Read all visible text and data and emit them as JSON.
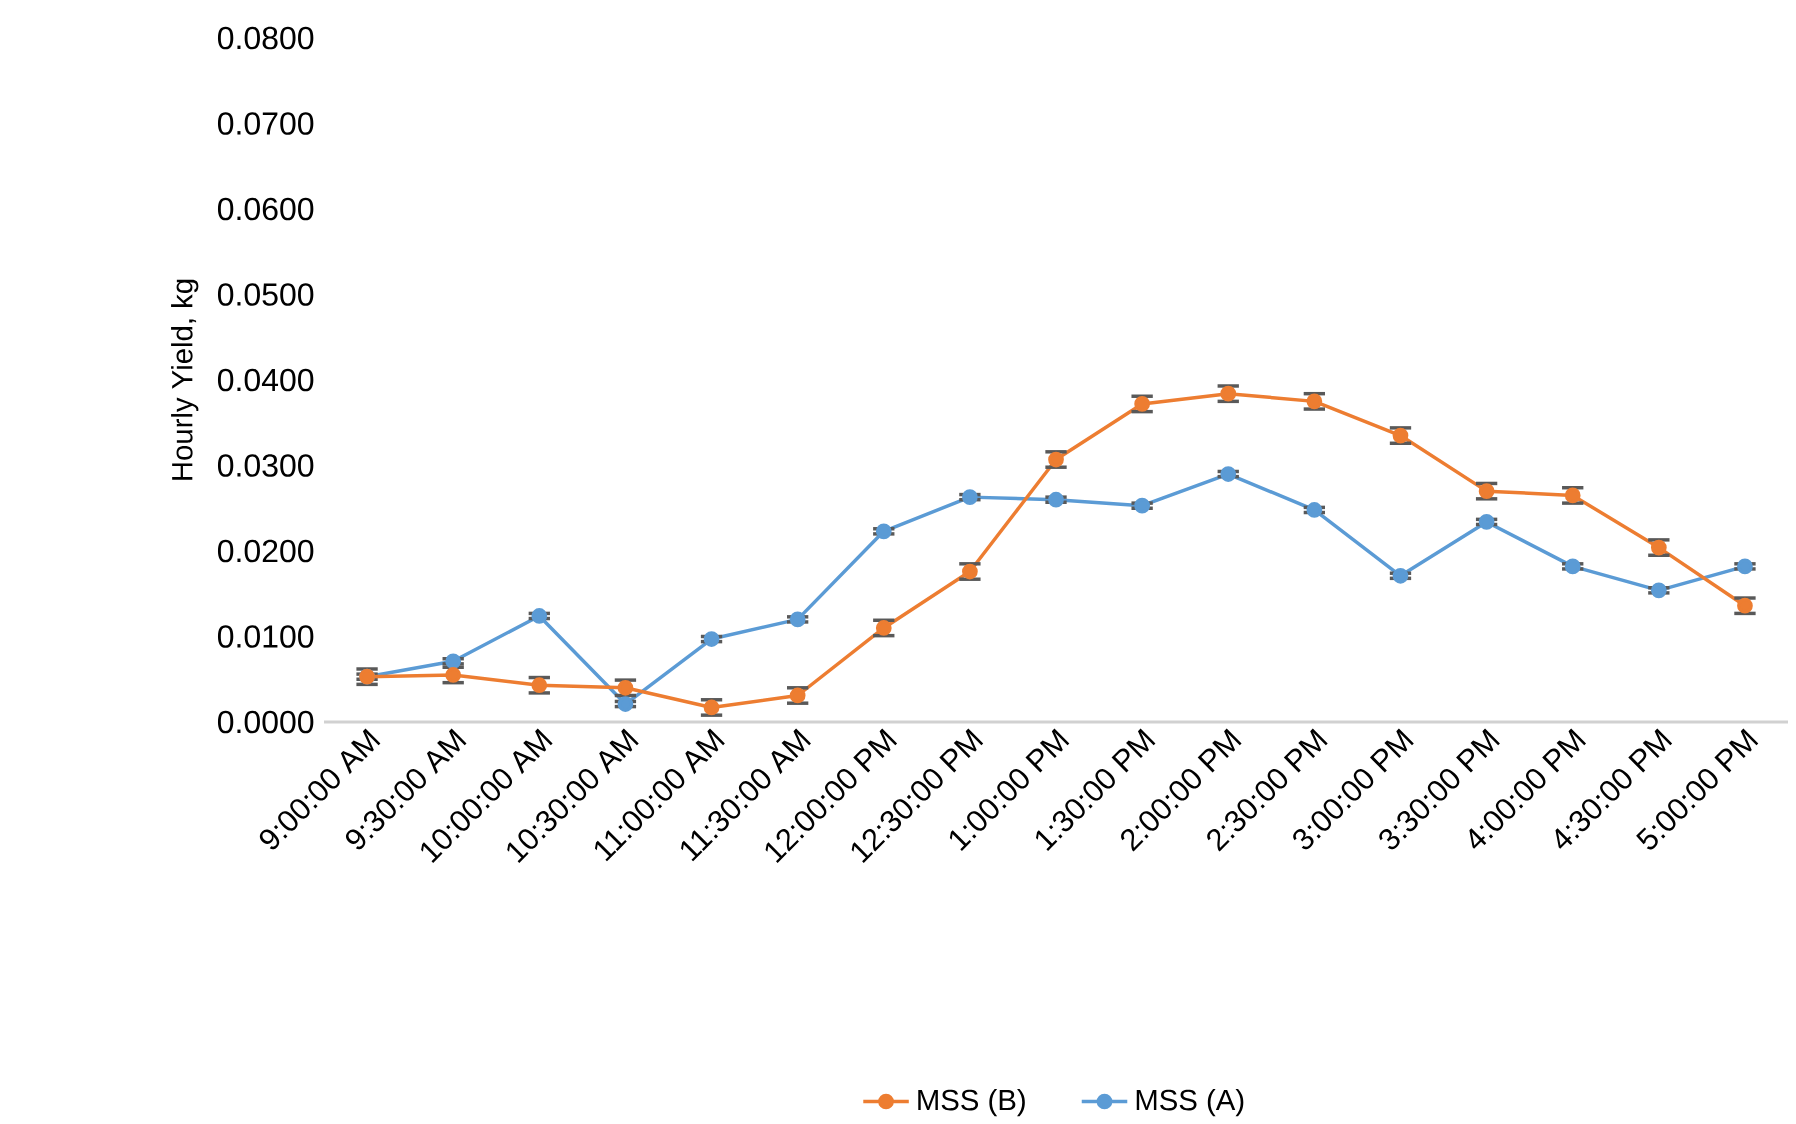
{
  "chart_data": {
    "type": "line",
    "ylabel": "Hourly Yield, kg",
    "categories": [
      "9:00:00 AM",
      "9:30:00 AM",
      "10:00:00 AM",
      "10:30:00 AM",
      "11:00:00 AM",
      "11:30:00 AM",
      "12:00:00 PM",
      "12:30:00 PM",
      "1:00:00 PM",
      "1:30:00 PM",
      "2:00:00 PM",
      "2:30:00 PM",
      "3:00:00 PM",
      "3:30:00 PM",
      "4:00:00 PM",
      "4:30:00 PM",
      "5:00:00 PM"
    ],
    "series": [
      {
        "name": "MSS (B)",
        "color": "#ed7d31",
        "values": [
          0.0053,
          0.0055,
          0.0043,
          0.004,
          0.0017,
          0.0031,
          0.011,
          0.0176,
          0.0307,
          0.0372,
          0.0384,
          0.0375,
          0.0335,
          0.027,
          0.0265,
          0.0204,
          0.0136
        ],
        "errors": [
          0.0009,
          0.0009,
          0.0009,
          0.0009,
          0.0009,
          0.0009,
          0.0009,
          0.0009,
          0.0009,
          0.0009,
          0.0009,
          0.0009,
          0.0009,
          0.0009,
          0.0009,
          0.0009,
          0.0009
        ]
      },
      {
        "name": "MSS (A)",
        "color": "#5b9bd5",
        "values": [
          0.0053,
          0.0071,
          0.0124,
          0.0021,
          0.0097,
          0.012,
          0.0223,
          0.0263,
          0.026,
          0.0253,
          0.029,
          0.0248,
          0.0171,
          0.0234,
          0.0182,
          0.0154,
          0.0182
        ],
        "errors": [
          0.0003,
          0.0003,
          0.0003,
          0.0003,
          0.0003,
          0.0003,
          0.0003,
          0.0003,
          0.0003,
          0.0003,
          0.0003,
          0.0003,
          0.0003,
          0.0003,
          0.0003,
          0.0003,
          0.0003
        ]
      }
    ],
    "ylim": [
      0,
      0.08
    ],
    "yticks": [
      {
        "value": 0,
        "label": "0.0000"
      },
      {
        "value": 0.01,
        "label": "0.0100"
      },
      {
        "value": 0.02,
        "label": "0.0200"
      },
      {
        "value": 0.03,
        "label": "0.0300"
      },
      {
        "value": 0.04,
        "label": "0.0400"
      },
      {
        "value": 0.05,
        "label": "0.0500"
      },
      {
        "value": 0.06,
        "label": "0.0600"
      },
      {
        "value": 0.07,
        "label": "0.0700"
      },
      {
        "value": 0.08,
        "label": "0.0800"
      }
    ],
    "grid": false,
    "legend": "bottom",
    "marker": "circle",
    "line_style": "solid"
  }
}
